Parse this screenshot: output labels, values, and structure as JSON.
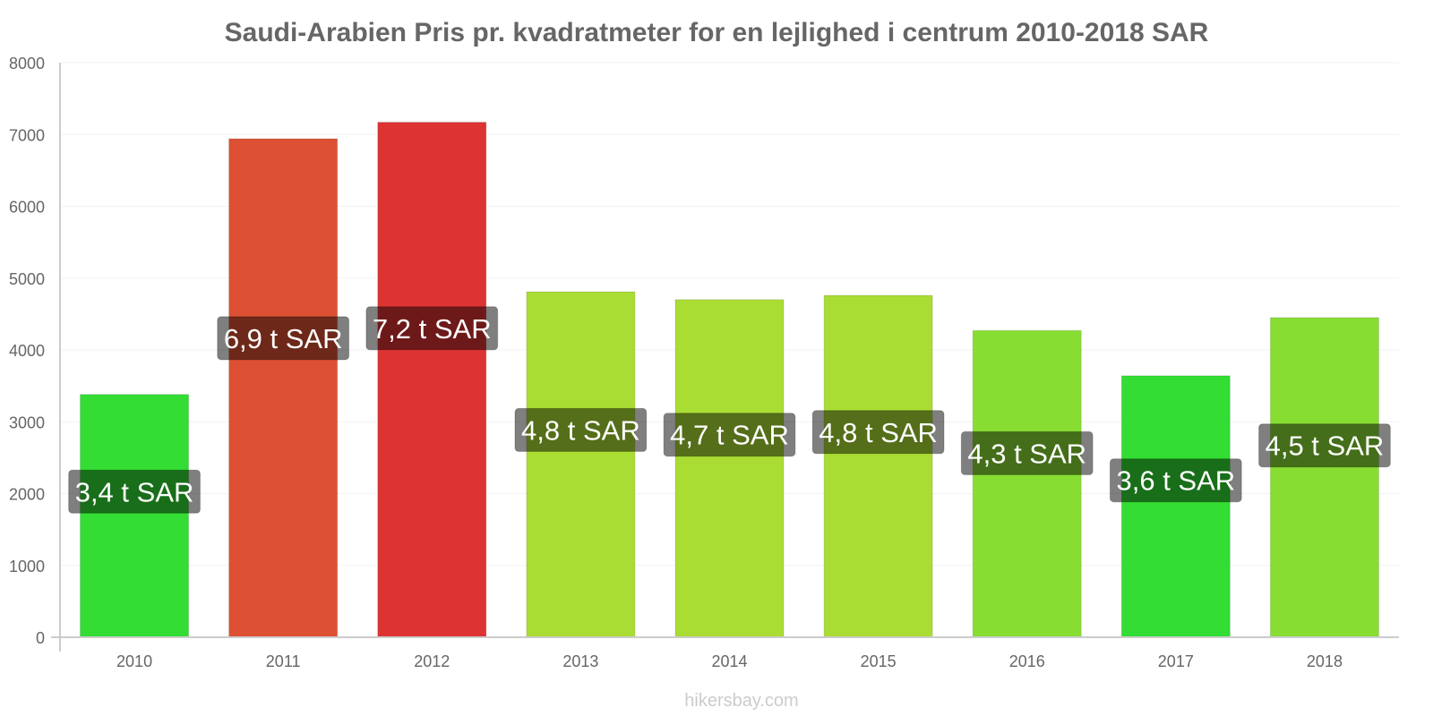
{
  "chart_data": {
    "type": "bar",
    "title": "Saudi-Arabien Pris pr. kvadratmeter for en lejlighed i centrum 2010-2018 SAR",
    "categories": [
      "2010",
      "2011",
      "2012",
      "2013",
      "2014",
      "2015",
      "2016",
      "2017",
      "2018"
    ],
    "values": [
      3380,
      6940,
      7170,
      4810,
      4700,
      4760,
      4270,
      3640,
      4450
    ],
    "data_labels": [
      "3,4 t SAR",
      "6,9 t SAR",
      "7,2 t SAR",
      "4,8 t SAR",
      "4,7 t SAR",
      "4,8 t SAR",
      "4,3 t SAR",
      "3,6 t SAR",
      "4,5 t SAR"
    ],
    "bar_colors": [
      "#33dd33",
      "#dd5033",
      "#dd3333",
      "#aadd33",
      "#aadd33",
      "#aadd33",
      "#88dd33",
      "#33dd33",
      "#88dd33"
    ],
    "yticks": [
      "0",
      "1000",
      "2000",
      "3000",
      "4000",
      "5000",
      "6000",
      "7000",
      "8000"
    ],
    "ylim": [
      0,
      8000
    ],
    "xlabel": "",
    "ylabel": "",
    "grid": true,
    "legend": "none"
  },
  "watermark": "hikersbay.com"
}
